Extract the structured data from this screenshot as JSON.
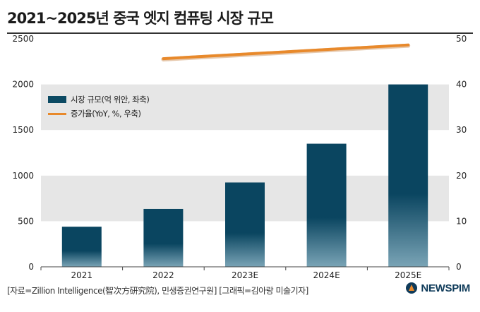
{
  "title": "2021~2025년 중국 엣지 컴퓨팅 시장 규모",
  "source": "[자료=Zillion Intelligence(智次方研究院), 민생증권연구원] [그래픽=김아랑 미술기자]",
  "brand": "NEWSPIM",
  "colors": {
    "bar_top": "#0a4560",
    "bar_bottom": "#7aa4b6",
    "line": "#e8892b",
    "band": "#e6e6e6"
  },
  "chart_data": {
    "type": "bar",
    "categories": [
      "2021",
      "2022",
      "2023E",
      "2024E",
      "2025E"
    ],
    "series": [
      {
        "name": "시장 규모(억 위안, 좌축)",
        "type": "bar",
        "axis": "left",
        "values": [
          440,
          635,
          925,
          1350,
          2000
        ]
      },
      {
        "name": "증가율(YoY, %, 우축)",
        "type": "line",
        "axis": "right",
        "x": [
          "2022",
          "2025E"
        ],
        "values": [
          45.5,
          48.5
        ]
      }
    ],
    "y_left": {
      "ylim": [
        0,
        2500
      ],
      "ticks": [
        "0",
        "500",
        "1000",
        "1500",
        "2000",
        "2500"
      ]
    },
    "y_right": {
      "ylim": [
        0,
        50
      ],
      "ticks": [
        "0",
        "10",
        "20",
        "30",
        "40",
        "50"
      ]
    },
    "legend_position": "top-left",
    "grid": "alternating horizontal bands"
  }
}
